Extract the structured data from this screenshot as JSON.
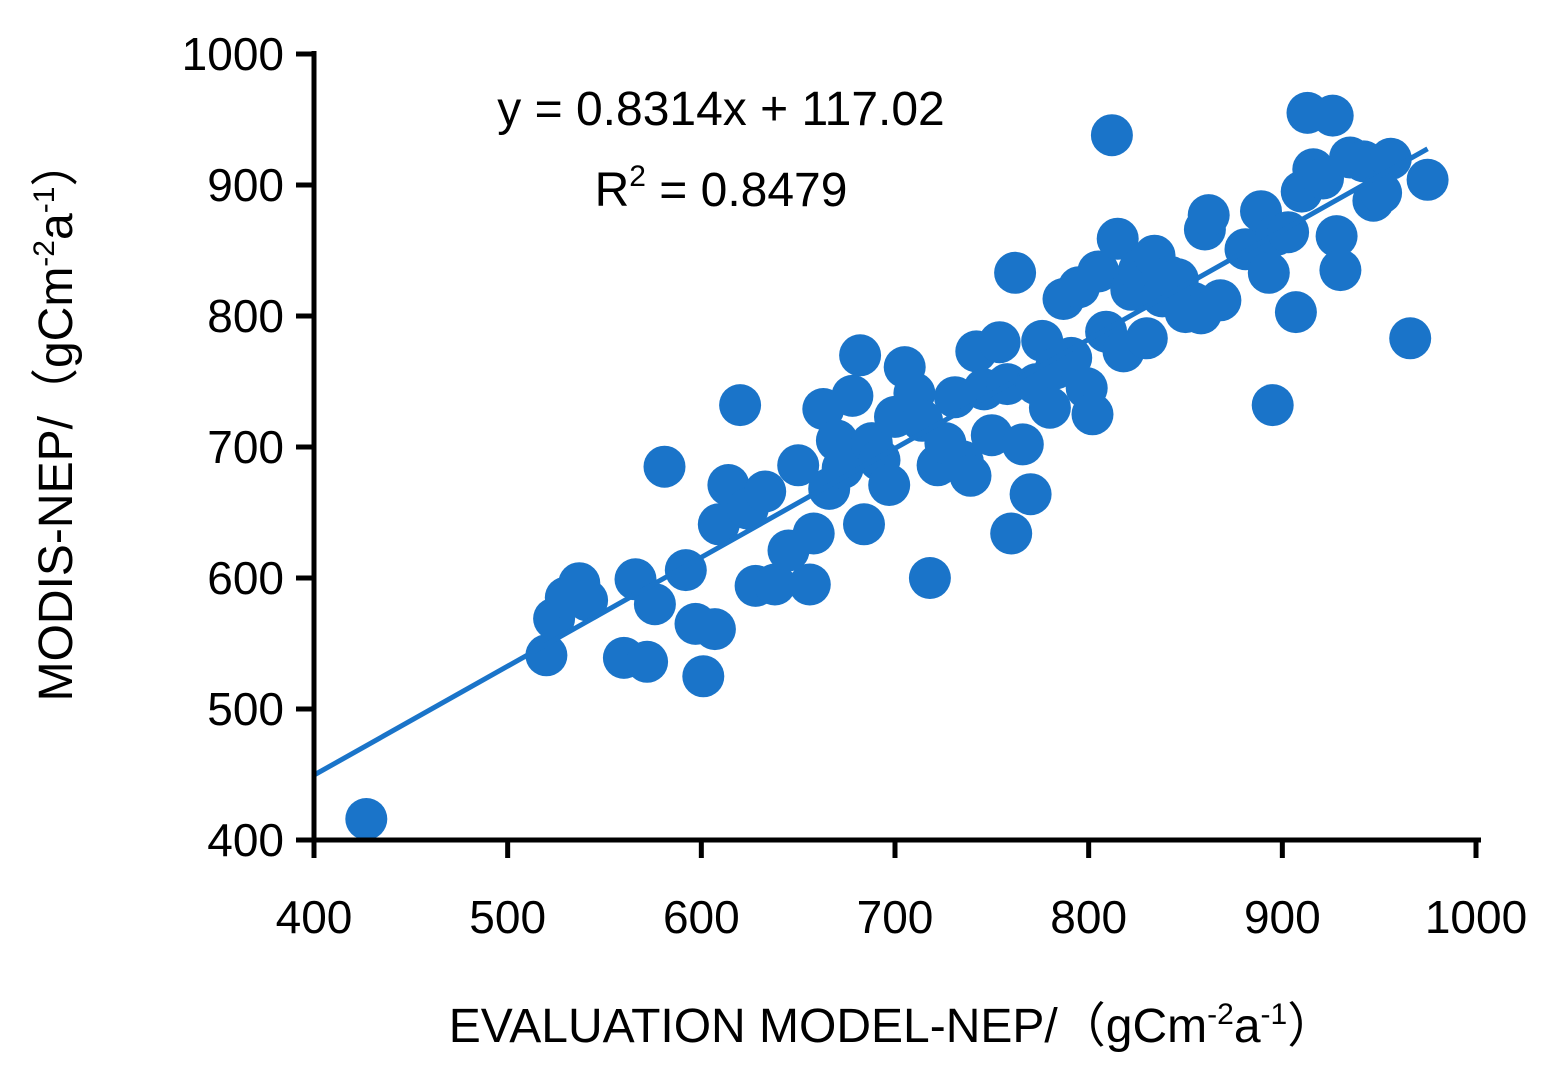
{
  "chart_data": {
    "type": "scatter",
    "xlabel": "EVALUATION MODEL-NEP/",
    "ylabel": "MODIS-NEP/",
    "unit_label": {
      "open": "（gCm",
      "exp1": "-2",
      "mid": "a",
      "exp2": "-1",
      "close": "）"
    },
    "xlim": [
      400,
      1000
    ],
    "ylim": [
      400,
      1000
    ],
    "x_ticks": [
      400,
      500,
      600,
      700,
      800,
      900,
      1000
    ],
    "y_ticks": [
      400,
      500,
      600,
      700,
      800,
      900,
      1000
    ],
    "x_tick_labels": [
      "400",
      "500",
      "600",
      "700",
      "800",
      "900",
      "1000"
    ],
    "y_tick_labels": [
      "400",
      "500",
      "600",
      "700",
      "800",
      "900",
      "1000"
    ],
    "trendline": {
      "slope": 0.8314,
      "intercept": 117.02,
      "x_range": [
        400,
        975
      ]
    },
    "equation_label": "y = 0.8314x + 117.02",
    "r2_label": {
      "prefix": "R",
      "sup": "2",
      "suffix": " = 0.8479"
    },
    "grid": false,
    "legend": "none",
    "colors": {
      "marker": "#1a74c9",
      "trendline": "#1a74c9",
      "axis": "#000000"
    },
    "points": [
      [
        427,
        416
      ],
      [
        520,
        541
      ],
      [
        524,
        569
      ],
      [
        530,
        585
      ],
      [
        537,
        596
      ],
      [
        541,
        583
      ],
      [
        560,
        539
      ],
      [
        566,
        599
      ],
      [
        572,
        536
      ],
      [
        576,
        580
      ],
      [
        581,
        685
      ],
      [
        592,
        606
      ],
      [
        597,
        565
      ],
      [
        601,
        525
      ],
      [
        607,
        561
      ],
      [
        609,
        641
      ],
      [
        614,
        671
      ],
      [
        620,
        732
      ],
      [
        624,
        653
      ],
      [
        628,
        594
      ],
      [
        633,
        666
      ],
      [
        638,
        595
      ],
      [
        645,
        621
      ],
      [
        650,
        686
      ],
      [
        656,
        595
      ],
      [
        658,
        634
      ],
      [
        663,
        729
      ],
      [
        666,
        668
      ],
      [
        670,
        705
      ],
      [
        673,
        684
      ],
      [
        678,
        739
      ],
      [
        682,
        770
      ],
      [
        684,
        641
      ],
      [
        688,
        703
      ],
      [
        692,
        690
      ],
      [
        697,
        671
      ],
      [
        700,
        723
      ],
      [
        705,
        761
      ],
      [
        710,
        741
      ],
      [
        714,
        720
      ],
      [
        718,
        600
      ],
      [
        722,
        686
      ],
      [
        726,
        703
      ],
      [
        731,
        738
      ],
      [
        735,
        689
      ],
      [
        739,
        678
      ],
      [
        742,
        773
      ],
      [
        746,
        744
      ],
      [
        750,
        709
      ],
      [
        754,
        780
      ],
      [
        758,
        748
      ],
      [
        760,
        634
      ],
      [
        762,
        833
      ],
      [
        766,
        702
      ],
      [
        770,
        664
      ],
      [
        773,
        748
      ],
      [
        776,
        781
      ],
      [
        780,
        730
      ],
      [
        783,
        760
      ],
      [
        787,
        813
      ],
      [
        791,
        768
      ],
      [
        795,
        822
      ],
      [
        799,
        745
      ],
      [
        802,
        725
      ],
      [
        805,
        834
      ],
      [
        809,
        788
      ],
      [
        812,
        938
      ],
      [
        815,
        859
      ],
      [
        818,
        773
      ],
      [
        822,
        820
      ],
      [
        826,
        835
      ],
      [
        830,
        783
      ],
      [
        834,
        846
      ],
      [
        838,
        815
      ],
      [
        842,
        830
      ],
      [
        846,
        828
      ],
      [
        850,
        803
      ],
      [
        854,
        810
      ],
      [
        858,
        802
      ],
      [
        860,
        866
      ],
      [
        862,
        877
      ],
      [
        868,
        812
      ],
      [
        881,
        851
      ],
      [
        889,
        880
      ],
      [
        893,
        833
      ],
      [
        895,
        732
      ],
      [
        897,
        862
      ],
      [
        903,
        864
      ],
      [
        907,
        803
      ],
      [
        910,
        895
      ],
      [
        913,
        955
      ],
      [
        916,
        912
      ],
      [
        921,
        905
      ],
      [
        926,
        953
      ],
      [
        928,
        861
      ],
      [
        930,
        835
      ],
      [
        935,
        921
      ],
      [
        942,
        918
      ],
      [
        947,
        888
      ],
      [
        951,
        894
      ],
      [
        956,
        920
      ],
      [
        966,
        783
      ],
      [
        975,
        904
      ]
    ]
  }
}
